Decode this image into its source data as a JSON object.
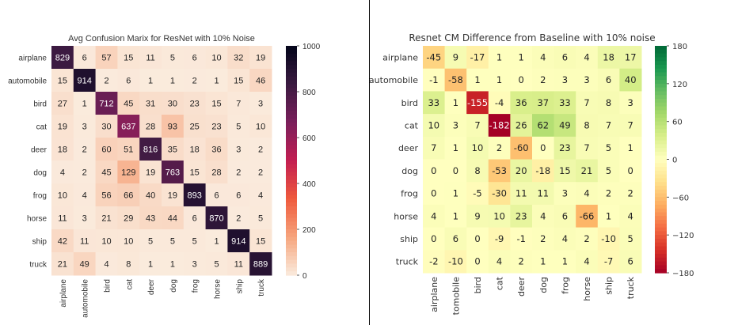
{
  "chart_data": [
    {
      "type": "heatmap",
      "title": "Avg Confusion Marix for ResNet with 10% Noise",
      "row_labels": [
        "airplane",
        "automobile",
        "bird",
        "cat",
        "deer",
        "dog",
        "frog",
        "horse",
        "ship",
        "truck"
      ],
      "col_labels": [
        "airplane",
        "automobile",
        "bird",
        "cat",
        "deer",
        "dog",
        "frog",
        "horse",
        "ship",
        "truck"
      ],
      "values": [
        [
          829,
          6,
          57,
          15,
          11,
          5,
          6,
          10,
          32,
          19
        ],
        [
          15,
          914,
          2,
          6,
          1,
          1,
          2,
          1,
          15,
          46
        ],
        [
          27,
          1,
          712,
          45,
          31,
          30,
          23,
          15,
          7,
          3
        ],
        [
          19,
          3,
          30,
          637,
          28,
          93,
          25,
          23,
          5,
          10
        ],
        [
          18,
          2,
          60,
          51,
          816,
          35,
          18,
          36,
          3,
          2
        ],
        [
          4,
          2,
          45,
          129,
          19,
          763,
          15,
          28,
          2,
          2
        ],
        [
          10,
          4,
          56,
          66,
          40,
          19,
          893,
          6,
          6,
          4
        ],
        [
          11,
          3,
          21,
          29,
          43,
          44,
          6,
          870,
          2,
          5
        ],
        [
          42,
          11,
          10,
          10,
          5,
          5,
          5,
          1,
          914,
          15
        ],
        [
          21,
          49,
          4,
          8,
          1,
          1,
          3,
          5,
          11,
          889
        ]
      ],
      "colorbar": {
        "range": [
          0,
          1000
        ],
        "ticks": [
          "0",
          "200",
          "400",
          "600",
          "800",
          "1000"
        ],
        "colormap": "rocket_r"
      }
    },
    {
      "type": "heatmap",
      "title": "Resnet CM Difference from Baseline with 10% noise",
      "row_labels": [
        "airplane",
        "automobile",
        "bird",
        "cat",
        "deer",
        "dog",
        "frog",
        "horse",
        "ship",
        "truck"
      ],
      "col_labels": [
        "airplane",
        "tomobile",
        "bird",
        "cat",
        "deer",
        "dog",
        "frog",
        "horse",
        "ship",
        "truck"
      ],
      "values": [
        [
          -45,
          9,
          -17,
          1,
          1,
          4,
          6,
          4,
          18,
          17
        ],
        [
          -1,
          -58,
          1,
          1,
          0,
          2,
          3,
          3,
          6,
          40
        ],
        [
          33,
          1,
          -155,
          -4,
          36,
          37,
          33,
          7,
          8,
          3
        ],
        [
          10,
          3,
          7,
          -182,
          26,
          62,
          49,
          8,
          7,
          7
        ],
        [
          7,
          1,
          10,
          2,
          -60,
          0,
          23,
          7,
          5,
          1
        ],
        [
          0,
          0,
          8,
          -53,
          20,
          -18,
          15,
          21,
          5,
          0
        ],
        [
          0,
          1,
          -5,
          -30,
          11,
          11,
          3,
          4,
          2,
          2
        ],
        [
          4,
          1,
          9,
          10,
          23,
          4,
          6,
          -66,
          1,
          4
        ],
        [
          0,
          6,
          0,
          -9,
          -1,
          2,
          4,
          2,
          -10,
          5
        ],
        [
          -2,
          -10,
          0,
          4,
          2,
          1,
          1,
          4,
          -7,
          6
        ]
      ],
      "colorbar": {
        "range": [
          -180,
          180
        ],
        "ticks": [
          "−180",
          "−120",
          "−60",
          "0",
          "60",
          "120",
          "180"
        ],
        "colormap": "RdYlGn"
      }
    }
  ]
}
